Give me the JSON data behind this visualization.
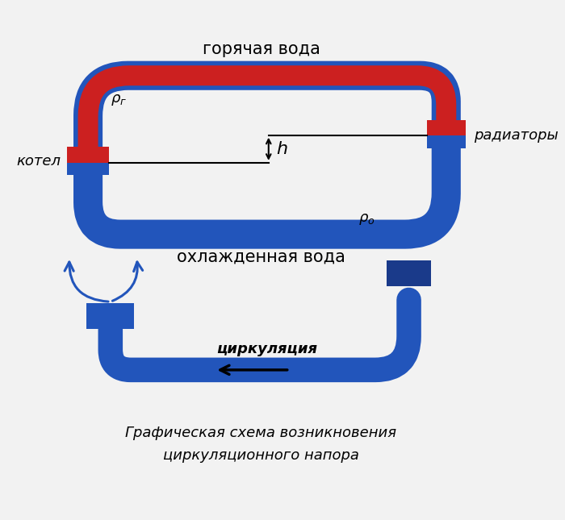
{
  "bg_color": "#f2f2f2",
  "red_color": "#cc2020",
  "blue_color": "#2255bb",
  "blue_dark": "#1a3a8a",
  "text_color": "#111111",
  "title": "Графическая схема возникновения",
  "title2": "циркуляционного напора",
  "label_hot": "горячая вода",
  "label_cold": "охлажденная вода",
  "label_boiler": "котел",
  "label_radiator": "радиаторы",
  "label_h": "h",
  "label_circ": "циркуляция"
}
